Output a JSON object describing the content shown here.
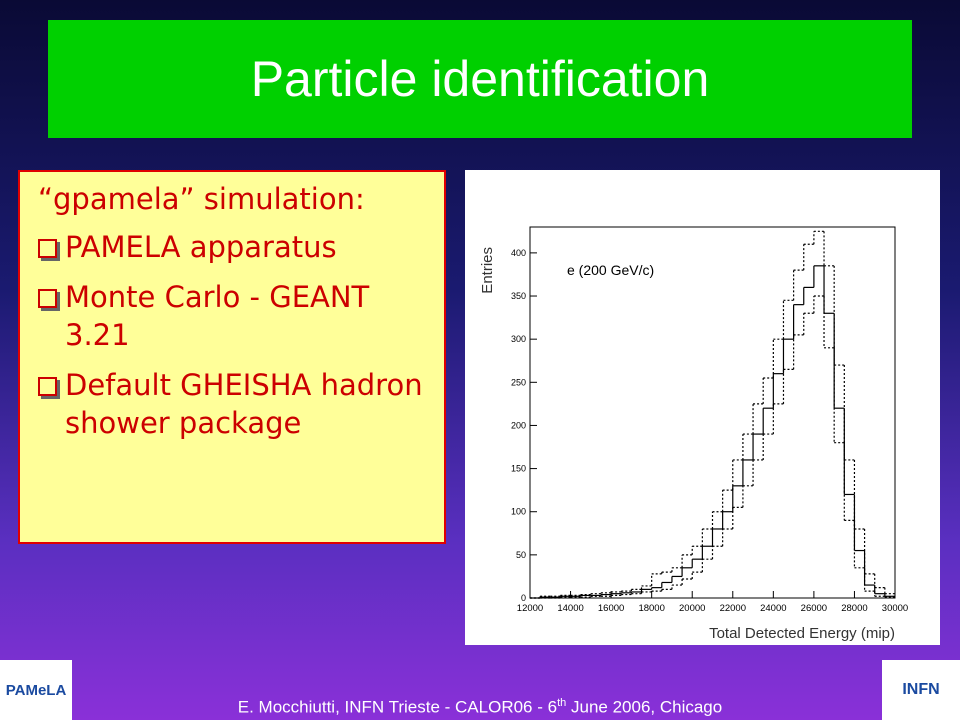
{
  "header": {
    "title": "Particle identification"
  },
  "textbox": {
    "heading": "“gpamela” simulation:",
    "bullets": [
      "PAMELA apparatus",
      "Monte Carlo - GEANT 3.21",
      "Default GHEISHA hadron shower package"
    ]
  },
  "chart_data": {
    "type": "histogram",
    "ylabel": "Entries",
    "xlabel": "Total Detected Energy (mip)",
    "annotation": "e (200 GeV/c)",
    "bins": [
      12000,
      12500,
      13000,
      13500,
      14000,
      14500,
      15000,
      15500,
      16000,
      16500,
      17000,
      17500,
      18000,
      18500,
      19000,
      19500,
      20000,
      20500,
      21000,
      21500,
      22000,
      22500,
      23000,
      23500,
      24000,
      24500,
      25000,
      25500,
      26000,
      26500,
      27000,
      27500,
      28000,
      28500,
      29000,
      29500,
      30000
    ],
    "series": [
      {
        "color": "#000000",
        "dashed": false,
        "values": [
          0,
          1,
          1,
          2,
          2,
          3,
          3,
          4,
          5,
          6,
          7,
          10,
          12,
          18,
          25,
          35,
          45,
          60,
          80,
          100,
          130,
          160,
          190,
          220,
          260,
          300,
          340,
          360,
          385,
          330,
          220,
          120,
          55,
          15,
          5,
          2
        ]
      },
      {
        "color": "#000000",
        "dashed": true,
        "values": [
          0,
          2,
          2,
          3,
          3,
          4,
          5,
          6,
          7,
          8,
          10,
          14,
          28,
          30,
          35,
          50,
          60,
          80,
          100,
          125,
          160,
          190,
          225,
          255,
          300,
          345,
          380,
          410,
          425,
          385,
          270,
          160,
          80,
          28,
          12,
          5
        ]
      },
      {
        "color": "#000000",
        "dashed": true,
        "values": [
          0,
          0,
          0,
          1,
          1,
          1,
          2,
          2,
          3,
          4,
          5,
          7,
          8,
          10,
          15,
          22,
          30,
          45,
          60,
          80,
          105,
          130,
          160,
          190,
          225,
          265,
          305,
          330,
          350,
          290,
          180,
          90,
          35,
          8,
          2,
          1
        ]
      }
    ],
    "xlim": [
      12000,
      30000
    ],
    "ylim": [
      0,
      430
    ],
    "xticks": [
      12000,
      14000,
      16000,
      18000,
      20000,
      22000,
      24000,
      26000,
      28000,
      30000
    ],
    "yticks": [
      0,
      50,
      100,
      150,
      200,
      250,
      300,
      350,
      400
    ]
  },
  "footer": {
    "before": "E. Mocchiutti, INFN Trieste - CALOR06 - 6",
    "sup": "th",
    "after": " June 2006, Chicago"
  },
  "logos": [
    "PAMeLA",
    "INFN"
  ]
}
